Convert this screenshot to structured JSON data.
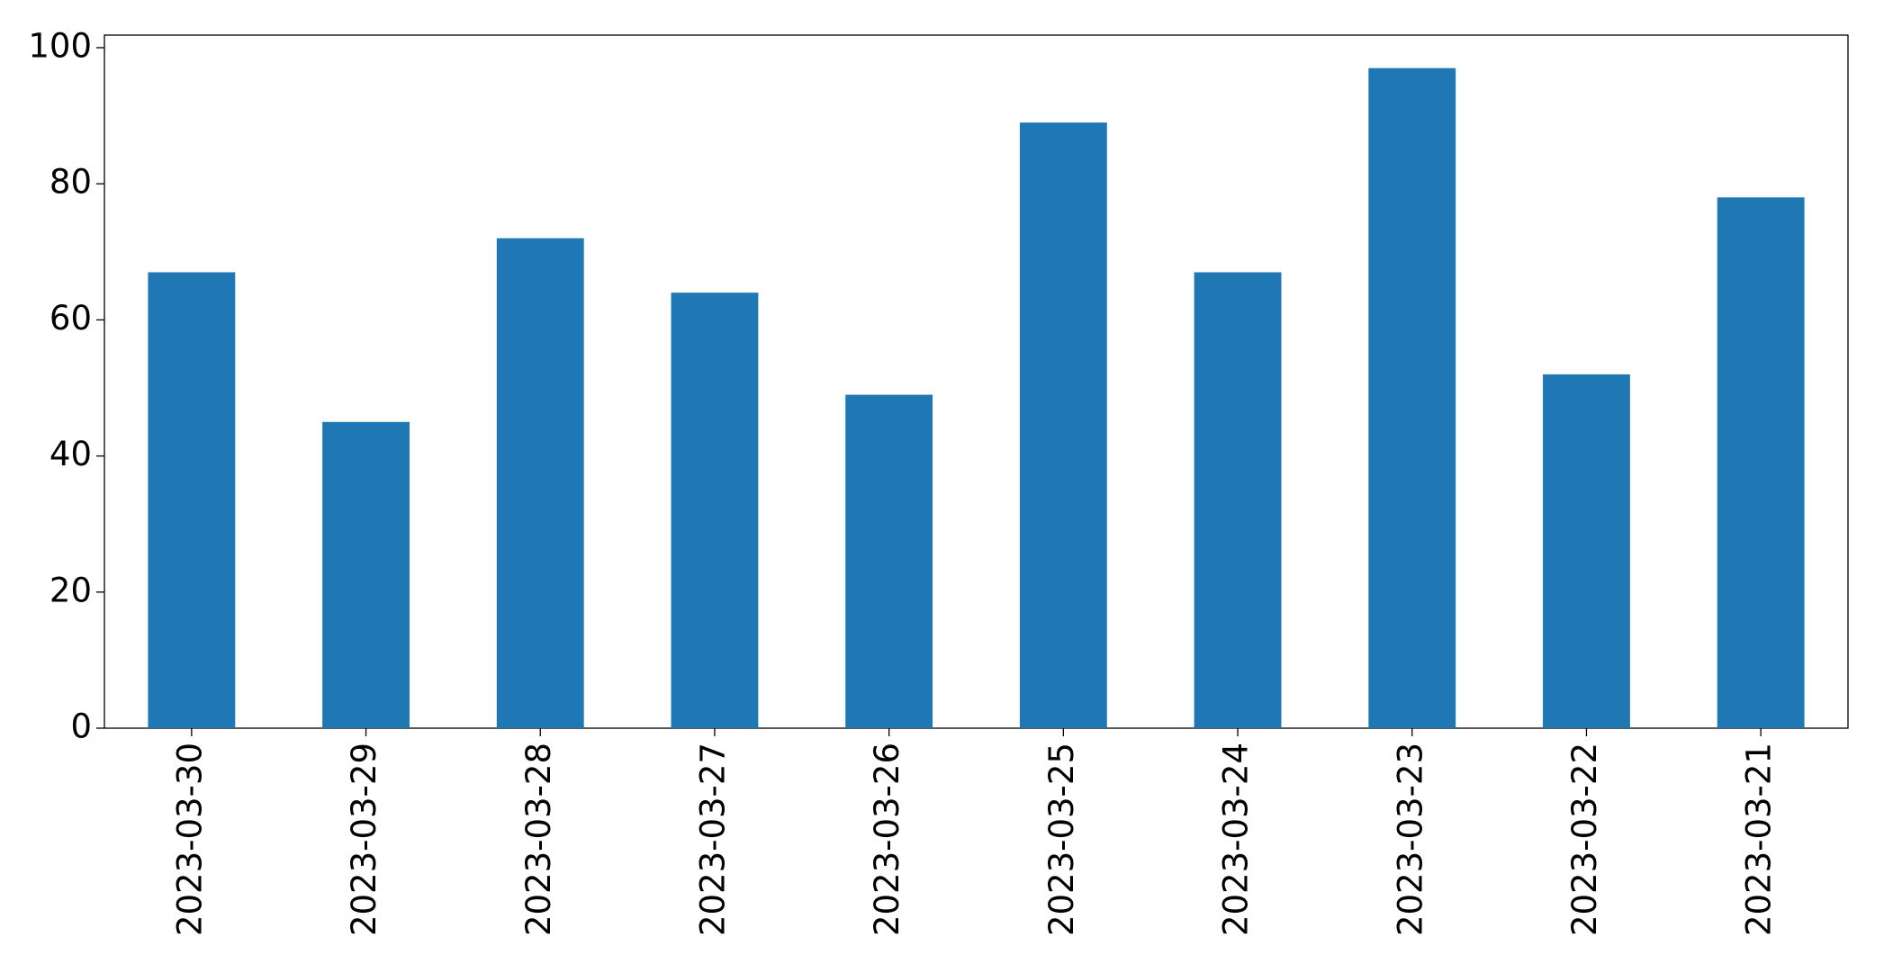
{
  "chart_data": {
    "type": "bar",
    "categories": [
      "2023-03-30",
      "2023-03-29",
      "2023-03-28",
      "2023-03-27",
      "2023-03-26",
      "2023-03-25",
      "2023-03-24",
      "2023-03-23",
      "2023-03-22",
      "2023-03-21"
    ],
    "values": [
      67,
      45,
      72,
      64,
      49,
      89,
      67,
      97,
      52,
      78
    ],
    "color": "#1f77b4",
    "ylim": [
      0,
      101.85
    ],
    "yticks": [
      0,
      20,
      40,
      60,
      80,
      100
    ],
    "grid": false
  }
}
